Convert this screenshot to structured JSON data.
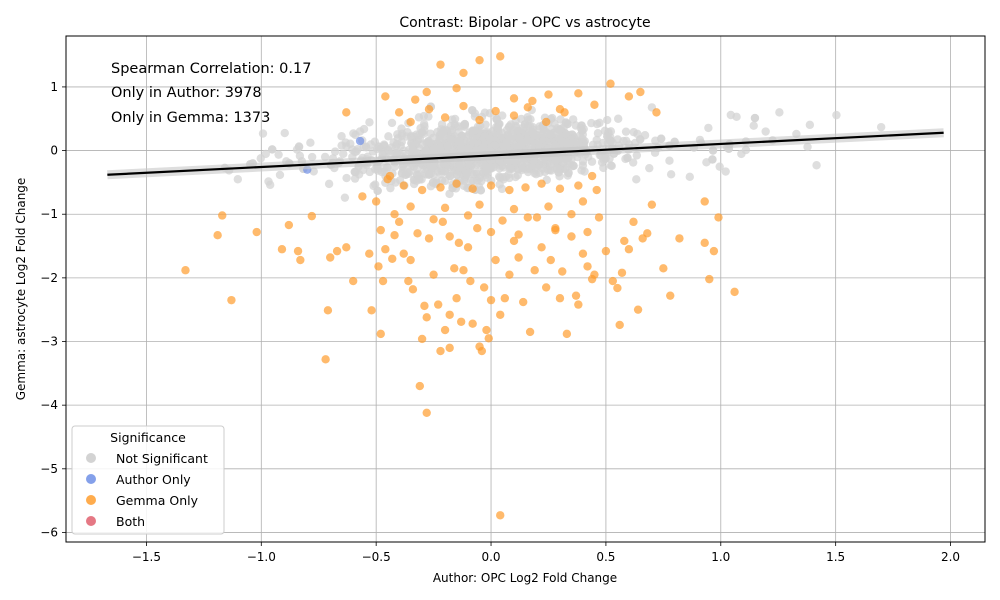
{
  "chart_data": {
    "type": "scatter",
    "title": "Contrast: Bipolar - OPC vs astrocyte",
    "xlabel": "Author: OPC Log2 Fold Change",
    "ylabel": "Gemma: astrocyte Log2 Fold Change",
    "xlim": [
      -1.85,
      2.15
    ],
    "ylim": [
      -6.15,
      1.8
    ],
    "xticks": [
      -1.5,
      -1.0,
      -0.5,
      0.0,
      0.5,
      1.0,
      1.5,
      2.0
    ],
    "xtick_labels": [
      "−1.5",
      "−1.0",
      "−0.5",
      "0.0",
      "0.5",
      "1.0",
      "1.5",
      "2.0"
    ],
    "yticks": [
      -6,
      -5,
      -4,
      -3,
      -2,
      -1,
      0,
      1
    ],
    "ytick_labels": [
      "−6",
      "−5",
      "−4",
      "−3",
      "−2",
      "−1",
      "0",
      "1"
    ],
    "grid": true,
    "annotations": [
      "Spearman Correlation: 0.17",
      "Only in Author: 3978",
      "Only in Gemma: 1373"
    ],
    "legend": {
      "title": "Significance",
      "position": "lower-left",
      "entries": [
        {
          "label": "Not Significant",
          "color": "#d3d3d3"
        },
        {
          "label": "Author Only",
          "color": "#6f8fe6"
        },
        {
          "label": "Gemma Only",
          "color": "#ff9d2e"
        },
        {
          "label": "Both",
          "color": "#e0606e"
        }
      ]
    },
    "regression_line": {
      "x": [
        -1.67,
        1.97
      ],
      "y": [
        -0.38,
        0.28
      ],
      "color": "#000000"
    },
    "series": [
      {
        "name": "Gemma Only",
        "color": "#ff9d2e",
        "points": [
          [
            -1.33,
            -1.88
          ],
          [
            -1.17,
            -1.02
          ],
          [
            -1.19,
            -1.33
          ],
          [
            -1.13,
            -2.35
          ],
          [
            -1.02,
            -1.28
          ],
          [
            -0.91,
            -1.55
          ],
          [
            -0.88,
            -1.17
          ],
          [
            -0.84,
            -1.58
          ],
          [
            -0.83,
            -1.72
          ],
          [
            -0.78,
            -1.03
          ],
          [
            -0.72,
            -3.28
          ],
          [
            -0.71,
            -2.51
          ],
          [
            -0.7,
            -1.68
          ],
          [
            -0.67,
            -1.58
          ],
          [
            -0.63,
            -1.52
          ],
          [
            -0.6,
            -2.05
          ],
          [
            -0.56,
            -0.72
          ],
          [
            -0.53,
            -1.62
          ],
          [
            -0.52,
            -2.51
          ],
          [
            -0.49,
            -1.82
          ],
          [
            -0.48,
            -2.88
          ],
          [
            -0.47,
            -2.05
          ],
          [
            -0.46,
            -1.55
          ],
          [
            -0.43,
            -1.7
          ],
          [
            -0.42,
            -1.33
          ],
          [
            -0.4,
            -1.12
          ],
          [
            -0.38,
            -1.62
          ],
          [
            -0.36,
            -2.05
          ],
          [
            -0.35,
            -1.72
          ],
          [
            -0.34,
            -2.18
          ],
          [
            -0.31,
            -3.7
          ],
          [
            -0.3,
            -2.96
          ],
          [
            -0.29,
            -2.44
          ],
          [
            -0.28,
            -4.12
          ],
          [
            -0.28,
            -2.62
          ],
          [
            -0.27,
            -1.38
          ],
          [
            -0.25,
            -1.95
          ],
          [
            -0.23,
            -2.42
          ],
          [
            -0.22,
            -3.15
          ],
          [
            -0.21,
            -1.12
          ],
          [
            -0.2,
            -2.82
          ],
          [
            -0.18,
            -2.58
          ],
          [
            -0.18,
            -3.1
          ],
          [
            -0.16,
            -1.85
          ],
          [
            -0.15,
            -2.32
          ],
          [
            -0.14,
            -1.45
          ],
          [
            -0.13,
            -2.69
          ],
          [
            -0.12,
            -1.88
          ],
          [
            -0.1,
            -1.52
          ],
          [
            -0.09,
            -2.05
          ],
          [
            -0.08,
            -2.72
          ],
          [
            -0.06,
            -1.22
          ],
          [
            -0.05,
            -3.08
          ],
          [
            -0.04,
            -3.15
          ],
          [
            -0.03,
            -2.15
          ],
          [
            -0.02,
            -2.82
          ],
          [
            -0.01,
            -2.95
          ],
          [
            0.0,
            -2.35
          ],
          [
            0.02,
            -1.72
          ],
          [
            0.04,
            -5.73
          ],
          [
            0.04,
            -2.58
          ],
          [
            0.06,
            -2.32
          ],
          [
            0.08,
            -1.95
          ],
          [
            0.1,
            -1.42
          ],
          [
            0.12,
            -1.68
          ],
          [
            0.14,
            -2.38
          ],
          [
            0.16,
            -1.05
          ],
          [
            0.17,
            -2.85
          ],
          [
            0.19,
            -1.88
          ],
          [
            0.22,
            -1.52
          ],
          [
            0.24,
            -2.15
          ],
          [
            0.26,
            -1.72
          ],
          [
            0.28,
            -1.22
          ],
          [
            0.3,
            -2.32
          ],
          [
            0.31,
            -1.9
          ],
          [
            0.33,
            -2.88
          ],
          [
            0.35,
            -1.35
          ],
          [
            0.37,
            -2.28
          ],
          [
            0.38,
            -2.42
          ],
          [
            0.4,
            -1.62
          ],
          [
            0.42,
            -1.82
          ],
          [
            0.44,
            -2.02
          ],
          [
            0.45,
            -1.95
          ],
          [
            0.47,
            -1.05
          ],
          [
            0.5,
            -1.58
          ],
          [
            0.53,
            -2.05
          ],
          [
            0.55,
            -2.16
          ],
          [
            0.56,
            -2.74
          ],
          [
            0.57,
            -1.92
          ],
          [
            0.58,
            -1.42
          ],
          [
            0.6,
            -1.55
          ],
          [
            0.62,
            -1.12
          ],
          [
            0.64,
            -2.5
          ],
          [
            0.66,
            -1.38
          ],
          [
            0.68,
            -1.3
          ],
          [
            0.7,
            -0.85
          ],
          [
            0.75,
            -1.85
          ],
          [
            0.78,
            -2.28
          ],
          [
            0.82,
            -1.38
          ],
          [
            0.93,
            -1.45
          ],
          [
            0.95,
            -2.02
          ],
          [
            0.97,
            -1.58
          ],
          [
            0.99,
            -1.05
          ],
          [
            1.06,
            -2.22
          ],
          [
            0.93,
            -0.8
          ],
          [
            0.6,
            0.85
          ],
          [
            0.65,
            0.92
          ],
          [
            0.52,
            1.05
          ],
          [
            0.72,
            0.6
          ],
          [
            0.45,
            0.72
          ],
          [
            0.38,
            0.9
          ],
          [
            0.25,
            0.88
          ],
          [
            0.18,
            0.78
          ],
          [
            0.1,
            0.82
          ],
          [
            0.04,
            1.48
          ],
          [
            -0.05,
            1.42
          ],
          [
            -0.12,
            1.22
          ],
          [
            -0.22,
            1.35
          ],
          [
            -0.28,
            0.92
          ],
          [
            -0.33,
            0.8
          ],
          [
            -0.4,
            0.6
          ],
          [
            -0.46,
            0.85
          ],
          [
            -0.63,
            0.6
          ],
          [
            -0.15,
            0.98
          ],
          [
            0.3,
            0.65
          ],
          [
            -0.45,
            -0.45
          ],
          [
            -0.38,
            -0.55
          ],
          [
            -0.3,
            -0.62
          ],
          [
            -0.22,
            -0.58
          ],
          [
            -0.15,
            -0.52
          ],
          [
            -0.08,
            -0.6
          ],
          [
            0.0,
            -0.55
          ],
          [
            0.08,
            -0.62
          ],
          [
            0.15,
            -0.58
          ],
          [
            0.22,
            -0.52
          ],
          [
            0.3,
            -0.6
          ],
          [
            0.38,
            -0.55
          ],
          [
            0.46,
            -0.62
          ],
          [
            -0.5,
            -0.8
          ],
          [
            -0.35,
            -0.88
          ],
          [
            -0.2,
            -0.9
          ],
          [
            -0.05,
            -0.85
          ],
          [
            0.1,
            -0.92
          ],
          [
            0.25,
            -0.88
          ],
          [
            0.4,
            -0.8
          ],
          [
            -0.42,
            -1.0
          ],
          [
            -0.25,
            -1.08
          ],
          [
            -0.1,
            -1.02
          ],
          [
            0.05,
            -1.1
          ],
          [
            0.2,
            -1.05
          ],
          [
            0.35,
            -1.0
          ],
          [
            -0.48,
            -1.25
          ],
          [
            -0.32,
            -1.3
          ],
          [
            -0.18,
            -1.35
          ],
          [
            0.0,
            -1.28
          ],
          [
            0.12,
            -1.32
          ],
          [
            0.28,
            -1.25
          ],
          [
            0.42,
            -1.28
          ],
          [
            -0.44,
            -0.4
          ],
          [
            0.44,
            -0.4
          ],
          [
            -0.35,
            0.45
          ],
          [
            -0.2,
            0.52
          ],
          [
            -0.05,
            0.48
          ],
          [
            0.1,
            0.55
          ],
          [
            0.24,
            0.45
          ],
          [
            -0.27,
            0.65
          ],
          [
            -0.12,
            0.7
          ],
          [
            0.02,
            0.62
          ],
          [
            0.16,
            0.68
          ],
          [
            0.32,
            0.6
          ]
        ]
      },
      {
        "name": "Author Only",
        "color": "#6f8fe6",
        "points": [
          [
            -0.57,
            0.15
          ],
          [
            -0.8,
            -0.3
          ]
        ]
      }
    ]
  }
}
